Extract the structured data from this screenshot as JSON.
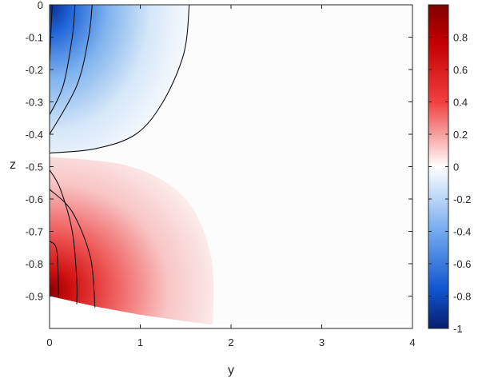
{
  "chart_data": {
    "type": "heatmap",
    "title": "",
    "xlabel": "y",
    "ylabel": "z",
    "xlim": [
      0,
      4
    ],
    "ylim": [
      -1,
      0
    ],
    "x_ticks": [
      0,
      1,
      2,
      3,
      4
    ],
    "x_tick_labels": [
      "0",
      "1",
      "2",
      "3",
      "4"
    ],
    "y_ticks": [
      0,
      -0.1,
      -0.2,
      -0.3,
      -0.4,
      -0.5,
      -0.6,
      -0.7,
      -0.8,
      -0.9
    ],
    "y_tick_labels": [
      "0",
      "-0.1",
      "-0.2",
      "-0.3",
      "-0.4",
      "-0.5",
      "-0.6",
      "-0.7",
      "-0.8",
      "-0.9"
    ],
    "colorbar": {
      "range": [
        -1,
        1
      ],
      "ticks": [
        0.8,
        0.6,
        0.4,
        0.2,
        0,
        -0.2,
        -0.4,
        -0.6,
        -0.8,
        -1
      ],
      "tick_labels": [
        "0.8",
        "0.6",
        "0.4",
        "0.2",
        "0",
        "-0.2",
        "-0.4",
        "-0.6",
        "-0.8",
        "-1"
      ],
      "colormap": "blue-white-red (diverging)"
    },
    "colors": {
      "negative": "#08306b",
      "mid_negative": "#2f80e6",
      "zero": "#ffffff",
      "mid_positive": "#e8281e",
      "positive": "#800000"
    },
    "domain_bottom_boundary": [
      {
        "y": 0.0,
        "z": -0.9
      },
      {
        "y": 0.5,
        "z": -0.932
      },
      {
        "y": 1.0,
        "z": -0.958
      },
      {
        "y": 1.5,
        "z": -0.978
      },
      {
        "y": 1.8,
        "z": -0.989
      },
      {
        "y": 4.0,
        "z": -0.989
      }
    ],
    "contour_lines": [
      {
        "sign": "negative",
        "points": [
          [
            0.03,
            0
          ],
          [
            0.02,
            -0.05
          ],
          [
            0.0,
            -0.18
          ]
        ]
      },
      {
        "sign": "negative",
        "points": [
          [
            0.28,
            0
          ],
          [
            0.25,
            -0.1
          ],
          [
            0.15,
            -0.25
          ],
          [
            0.0,
            -0.34
          ]
        ]
      },
      {
        "sign": "negative",
        "points": [
          [
            0.47,
            0
          ],
          [
            0.43,
            -0.1
          ],
          [
            0.3,
            -0.25
          ],
          [
            0.0,
            -0.4
          ]
        ]
      },
      {
        "sign": "negative",
        "points": [
          [
            1.54,
            0
          ],
          [
            1.48,
            -0.15
          ],
          [
            1.25,
            -0.3
          ],
          [
            0.95,
            -0.4
          ],
          [
            0.5,
            -0.445
          ],
          [
            0.0,
            -0.458
          ]
        ]
      },
      {
        "sign": "positive",
        "points": [
          [
            0.0,
            -0.51
          ],
          [
            0.12,
            -0.57
          ],
          [
            0.25,
            -0.7
          ],
          [
            0.3,
            -0.85
          ],
          [
            0.3,
            -0.925
          ]
        ]
      },
      {
        "sign": "positive",
        "points": [
          [
            0.0,
            -0.57
          ],
          [
            0.25,
            -0.64
          ],
          [
            0.45,
            -0.78
          ],
          [
            0.5,
            -0.935
          ]
        ]
      },
      {
        "sign": "positive",
        "points": [
          [
            0.0,
            -0.73
          ],
          [
            0.08,
            -0.76
          ],
          [
            0.1,
            -0.905
          ]
        ]
      }
    ]
  }
}
